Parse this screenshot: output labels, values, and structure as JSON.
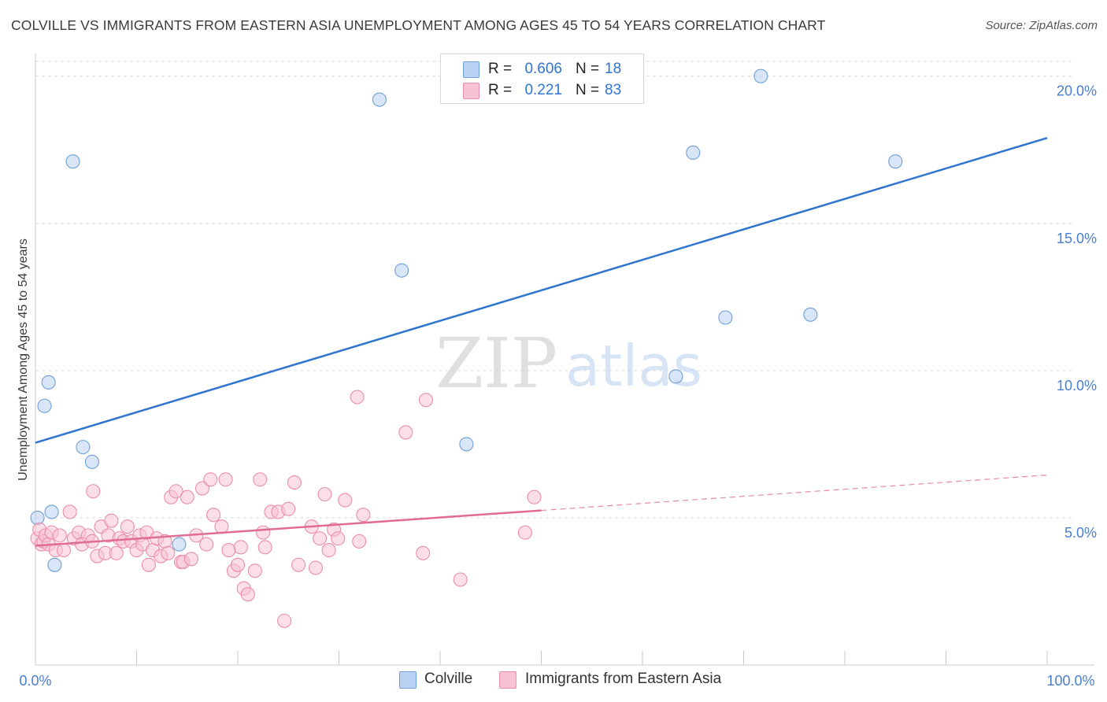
{
  "title": "COLVILLE VS IMMIGRANTS FROM EASTERN ASIA UNEMPLOYMENT AMONG AGES 45 TO 54 YEARS CORRELATION CHART",
  "source": "Source: ZipAtlas.com",
  "watermark": {
    "zip": "ZIP",
    "atlas": "atlas"
  },
  "colors": {
    "blue_fill": "#b9d1f3",
    "blue_stroke": "#6f9fd8",
    "blue_line": "#2f74cf",
    "pink_fill": "#f7c3d3",
    "pink_stroke": "#ea8eab",
    "pink_line": "#e06b94",
    "tick_label": "#4a7fcf",
    "grid": "#dcdcdc"
  },
  "legend": {
    "rows": [
      {
        "series": "Colville",
        "r_label": "R =",
        "r_value": "0.606",
        "n_label": "N =",
        "n_value": "18"
      },
      {
        "series": "Immigrants from Eastern Asia",
        "r_label": "R =",
        "r_value": "0.221",
        "n_label": "N =",
        "n_value": "83"
      }
    ]
  },
  "chart_data": {
    "type": "scatter",
    "xlabel": "",
    "ylabel": "Unemployment Among Ages 45 to 54 years",
    "xlim": [
      0,
      100
    ],
    "ylim": [
      0,
      20.5
    ],
    "x_tick_labels": [
      "0.0%",
      "100.0%"
    ],
    "y_ticks": [
      5,
      10,
      15,
      20
    ],
    "y_tick_labels": [
      "5.0%",
      "10.0%",
      "15.0%",
      "20.0%"
    ],
    "grid": true,
    "series": [
      {
        "name": "Colville",
        "color": "blue",
        "points": [
          [
            0.2,
            5.0
          ],
          [
            0.9,
            8.8
          ],
          [
            1.3,
            9.6
          ],
          [
            1.6,
            5.2
          ],
          [
            1.9,
            3.4
          ],
          [
            3.7,
            17.1
          ],
          [
            4.7,
            7.4
          ],
          [
            5.6,
            6.9
          ],
          [
            14.2,
            4.1
          ],
          [
            34.0,
            19.2
          ],
          [
            36.2,
            13.4
          ],
          [
            42.6,
            7.5
          ],
          [
            63.3,
            9.8
          ],
          [
            65.0,
            17.4
          ],
          [
            68.2,
            11.8
          ],
          [
            71.7,
            20.0
          ],
          [
            76.6,
            11.9
          ],
          [
            85.0,
            17.1
          ]
        ],
        "trend": {
          "x": [
            0,
            100
          ],
          "y": [
            7.55,
            17.9
          ],
          "style": "solid"
        }
      },
      {
        "name": "Immigrants from Eastern Asia",
        "color": "pink",
        "points": [
          [
            0.2,
            4.3
          ],
          [
            0.4,
            4.6
          ],
          [
            0.6,
            4.1
          ],
          [
            0.8,
            4.2
          ],
          [
            1.0,
            4.4
          ],
          [
            1.3,
            4.1
          ],
          [
            1.6,
            4.5
          ],
          [
            2.0,
            3.9
          ],
          [
            2.4,
            4.4
          ],
          [
            2.8,
            3.9
          ],
          [
            3.4,
            5.2
          ],
          [
            3.8,
            4.3
          ],
          [
            4.3,
            4.5
          ],
          [
            4.6,
            4.1
          ],
          [
            5.2,
            4.4
          ],
          [
            5.6,
            4.2
          ],
          [
            5.7,
            5.9
          ],
          [
            6.1,
            3.7
          ],
          [
            6.5,
            4.7
          ],
          [
            6.9,
            3.8
          ],
          [
            7.2,
            4.4
          ],
          [
            7.5,
            4.9
          ],
          [
            8.0,
            3.8
          ],
          [
            8.3,
            4.3
          ],
          [
            8.7,
            4.2
          ],
          [
            9.1,
            4.7
          ],
          [
            9.5,
            4.2
          ],
          [
            10.0,
            3.9
          ],
          [
            10.3,
            4.4
          ],
          [
            10.6,
            4.1
          ],
          [
            11.0,
            4.5
          ],
          [
            11.2,
            3.4
          ],
          [
            11.6,
            3.9
          ],
          [
            12.0,
            4.3
          ],
          [
            12.4,
            3.7
          ],
          [
            12.8,
            4.2
          ],
          [
            13.1,
            3.8
          ],
          [
            13.4,
            5.7
          ],
          [
            13.9,
            5.9
          ],
          [
            14.4,
            3.5
          ],
          [
            14.6,
            3.5
          ],
          [
            15.0,
            5.7
          ],
          [
            15.4,
            3.6
          ],
          [
            15.9,
            4.4
          ],
          [
            16.5,
            6.0
          ],
          [
            16.9,
            4.1
          ],
          [
            17.3,
            6.3
          ],
          [
            17.6,
            5.1
          ],
          [
            18.4,
            4.7
          ],
          [
            18.8,
            6.3
          ],
          [
            19.1,
            3.9
          ],
          [
            19.6,
            3.2
          ],
          [
            20.0,
            3.4
          ],
          [
            20.3,
            4.0
          ],
          [
            20.6,
            2.6
          ],
          [
            21.0,
            2.4
          ],
          [
            21.7,
            3.2
          ],
          [
            22.2,
            6.3
          ],
          [
            22.5,
            4.5
          ],
          [
            22.7,
            4.0
          ],
          [
            23.3,
            5.2
          ],
          [
            24.0,
            5.2
          ],
          [
            24.6,
            1.5
          ],
          [
            25.0,
            5.3
          ],
          [
            25.6,
            6.2
          ],
          [
            26.0,
            3.4
          ],
          [
            27.3,
            4.7
          ],
          [
            27.7,
            3.3
          ],
          [
            28.1,
            4.3
          ],
          [
            28.6,
            5.8
          ],
          [
            29.0,
            3.9
          ],
          [
            29.5,
            4.6
          ],
          [
            29.9,
            4.3
          ],
          [
            30.6,
            5.6
          ],
          [
            31.8,
            9.1
          ],
          [
            32.4,
            5.1
          ],
          [
            36.6,
            7.9
          ],
          [
            38.3,
            3.8
          ],
          [
            38.6,
            9.0
          ],
          [
            42.0,
            2.9
          ],
          [
            48.4,
            4.5
          ],
          [
            49.3,
            5.7
          ],
          [
            32.0,
            4.2
          ]
        ],
        "trend": {
          "x": [
            0,
            100
          ],
          "y": [
            4.05,
            6.45
          ],
          "solid_until_x": 50,
          "style": "solid-then-dashed"
        }
      }
    ]
  }
}
